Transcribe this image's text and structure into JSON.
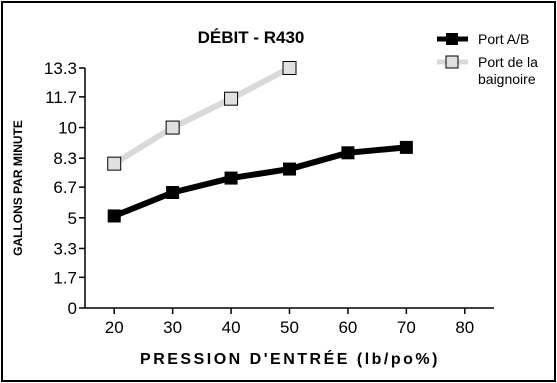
{
  "chart_data": {
    "type": "line",
    "title": "DÉBIT - R430",
    "xlabel": "PRESSION D'ENTRÉE (lb/po%)",
    "ylabel": "GALLONS PAR MINUTE",
    "x_ticks": [
      "20",
      "30",
      "40",
      "50",
      "60",
      "70",
      "80"
    ],
    "y_ticks": [
      "0",
      "1.7",
      "3.3",
      "5",
      "6.7",
      "8.3",
      "10",
      "11.7",
      "13.3"
    ],
    "xlim": [
      15,
      85
    ],
    "ylim": [
      0,
      13.3
    ],
    "grid": false,
    "legend_position": "top-right",
    "series": [
      {
        "name": "Port A/B",
        "color": "#000000",
        "marker": "filled-square",
        "x": [
          20,
          30,
          40,
          50,
          60,
          70
        ],
        "y": [
          5.1,
          6.4,
          7.2,
          7.7,
          8.6,
          8.9
        ]
      },
      {
        "name_lines": [
          "Port de la",
          "baignoire"
        ],
        "color": "#d9d9d9",
        "marker": "open-square",
        "x": [
          20,
          30,
          40,
          50
        ],
        "y": [
          8.0,
          10.0,
          11.6,
          13.3
        ]
      }
    ]
  }
}
